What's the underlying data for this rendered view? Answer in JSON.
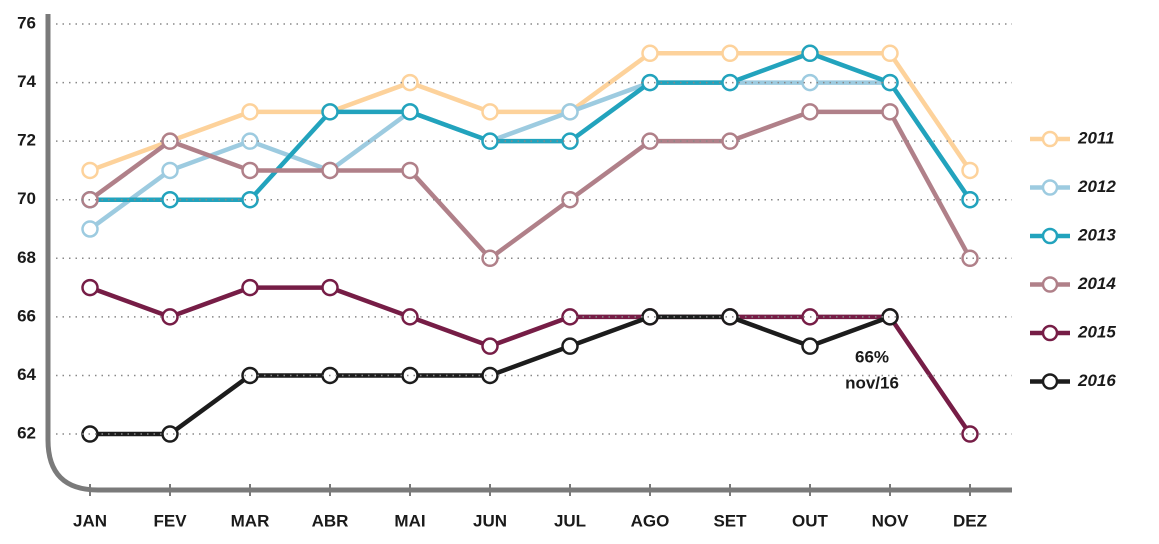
{
  "chart_data": {
    "type": "line",
    "categories": [
      "JAN",
      "FEV",
      "MAR",
      "ABR",
      "MAI",
      "JUN",
      "JUL",
      "AGO",
      "SET",
      "OUT",
      "NOV",
      "DEZ"
    ],
    "series": [
      {
        "name": "2011",
        "color": "#fdd29b",
        "values": [
          71,
          72,
          73,
          73,
          74,
          73,
          73,
          75,
          75,
          75,
          75,
          71
        ]
      },
      {
        "name": "2012",
        "color": "#9dcbe0",
        "values": [
          69,
          71,
          72,
          71,
          73,
          72,
          73,
          74,
          74,
          74,
          74,
          70
        ]
      },
      {
        "name": "2013",
        "color": "#22a3bd",
        "values": [
          70,
          70,
          70,
          73,
          73,
          72,
          72,
          74,
          74,
          75,
          74,
          70
        ]
      },
      {
        "name": "2014",
        "color": "#b08089",
        "values": [
          70,
          72,
          71,
          71,
          71,
          68,
          70,
          72,
          72,
          73,
          73,
          68
        ]
      },
      {
        "name": "2015",
        "color": "#761d46",
        "values": [
          67,
          66,
          67,
          67,
          66,
          65,
          66,
          66,
          66,
          66,
          66,
          62
        ]
      },
      {
        "name": "2016",
        "color": "#1c1c1c",
        "values": [
          62,
          62,
          64,
          64,
          64,
          64,
          65,
          66,
          66,
          65,
          66,
          null
        ]
      }
    ],
    "ylim": [
      60,
      76
    ],
    "yticks": [
      62,
      64,
      66,
      68,
      70,
      72,
      74,
      76
    ],
    "grid": true,
    "annotations": [
      "66%",
      "nov/16"
    ]
  }
}
